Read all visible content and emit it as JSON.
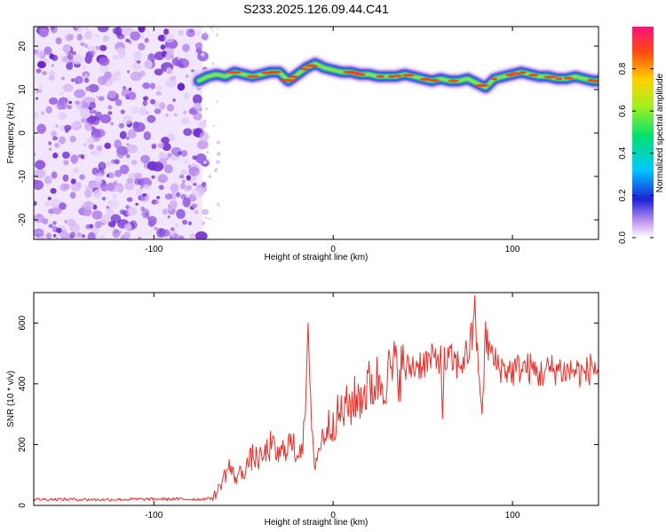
{
  "title": "S233.2025.126.09.44.C41",
  "chart_data": [
    {
      "type": "heatmap",
      "xlabel": "Height of straight line (km)",
      "ylabel": "Frequency (Hz)",
      "xlim": [
        -167,
        148
      ],
      "ylim": [
        -24.5,
        24.5
      ],
      "xticks": [
        -100,
        0,
        100
      ],
      "yticks": [
        -20,
        -10,
        0,
        10,
        20
      ],
      "colorbar": {
        "label": "Normalized spectral amplitude",
        "range": [
          0,
          1
        ],
        "ticks": [
          0.0,
          0.2,
          0.4,
          0.6,
          0.8
        ]
      },
      "noise_region_x": [
        -167,
        -73
      ],
      "ridge": {
        "x": [
          -75,
          -70,
          -65,
          -60,
          -55,
          -50,
          -45,
          -40,
          -35,
          -30,
          -25,
          -20,
          -15,
          -10,
          -5,
          0,
          5,
          10,
          15,
          20,
          25,
          30,
          35,
          40,
          45,
          50,
          55,
          60,
          65,
          70,
          75,
          80,
          85,
          90,
          95,
          100,
          105,
          110,
          115,
          120,
          125,
          130,
          135,
          140,
          145,
          148
        ],
        "freq": [
          12,
          13,
          13.5,
          13,
          14,
          13.5,
          13,
          13.5,
          14,
          14,
          12,
          13.5,
          15,
          16,
          15,
          14.5,
          14,
          14,
          13.5,
          13.5,
          13,
          13,
          13,
          13.5,
          13,
          12.5,
          12,
          12.5,
          12,
          12,
          12.5,
          11.5,
          10.5,
          12.5,
          13,
          13.5,
          14,
          13.5,
          13,
          13,
          12.5,
          12.5,
          13,
          12.5,
          12,
          12
        ]
      }
    },
    {
      "type": "line",
      "xlabel": "Height of straight line (km)",
      "ylabel": "SNR (10 * v/v)",
      "xlim": [
        -167,
        148
      ],
      "ylim": [
        0,
        700
      ],
      "xticks": [
        -100,
        0,
        100
      ],
      "yticks": [
        0,
        200,
        400,
        600
      ],
      "color": "#e8302a",
      "series": [
        {
          "x": [
            -167,
            -150,
            -130,
            -110,
            -90,
            -75,
            -68,
            -65,
            -62,
            -58,
            -55,
            -50,
            -45,
            -40,
            -35,
            -30,
            -25,
            -20,
            -16,
            -14,
            -12,
            -10,
            -5,
            0,
            5,
            10,
            15,
            20,
            25,
            30,
            35,
            40,
            45,
            50,
            55,
            60,
            61,
            62,
            65,
            70,
            75,
            78,
            79,
            80,
            81,
            83,
            85,
            90,
            95,
            100,
            105,
            110,
            115,
            120,
            125,
            130,
            135,
            140,
            145,
            148
          ],
          "y": [
            20,
            20,
            19,
            20,
            21,
            20,
            23,
            40,
            80,
            130,
            90,
            115,
            160,
            150,
            195,
            160,
            210,
            175,
            230,
            600,
            210,
            145,
            240,
            280,
            305,
            335,
            360,
            390,
            410,
            425,
            450,
            445,
            460,
            470,
            475,
            495,
            285,
            470,
            480,
            460,
            500,
            560,
            690,
            520,
            470,
            300,
            550,
            470,
            450,
            440,
            455,
            450,
            430,
            445,
            450,
            440,
            445,
            430,
            460,
            440
          ]
        }
      ]
    }
  ]
}
